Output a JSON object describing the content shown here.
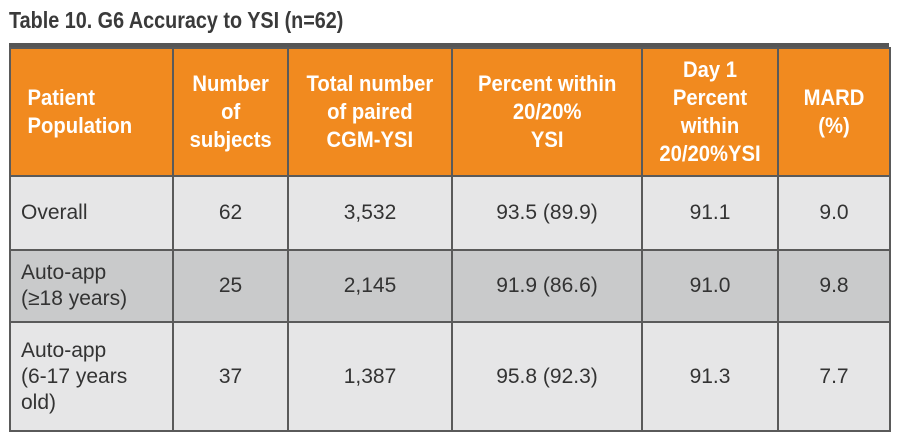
{
  "title": "Table 10. G6 Accuracy to YSI (n=62)",
  "headers": {
    "population": [
      "Patient",
      "Population"
    ],
    "subjects": [
      "Number",
      "of",
      "subjects"
    ],
    "paired": [
      "Total number",
      "of paired",
      "CGM-YSI"
    ],
    "within": [
      "Percent within",
      "20/20%",
      "YSI"
    ],
    "day1": [
      "Day 1",
      "Percent",
      "within",
      "20/20%YSI"
    ],
    "mard": [
      "MARD",
      "(%)"
    ]
  },
  "rows": [
    {
      "population": [
        "Overall"
      ],
      "subjects": "62",
      "paired": "3,532",
      "within": "93.5 (89.9)",
      "day1": "91.1",
      "mard": "9.0"
    },
    {
      "population": [
        "Auto-app",
        "(≥18 years)"
      ],
      "subjects": "25",
      "paired": "2,145",
      "within": "91.9 (86.6)",
      "day1": "91.0",
      "mard": "9.8"
    },
    {
      "population": [
        "Auto-app",
        "(6-17 years",
        "old)"
      ],
      "subjects": "37",
      "paired": "1,387",
      "within": "95.8 (92.3)",
      "day1": "91.3",
      "mard": "7.7"
    }
  ],
  "colors": {
    "header_background": "#f18a1f",
    "header_text": "#ffffff",
    "row_light": "#e6e6e7",
    "row_dark": "#c9cacb",
    "border": "#5a5a5a",
    "title_text": "#3a3a3a"
  }
}
